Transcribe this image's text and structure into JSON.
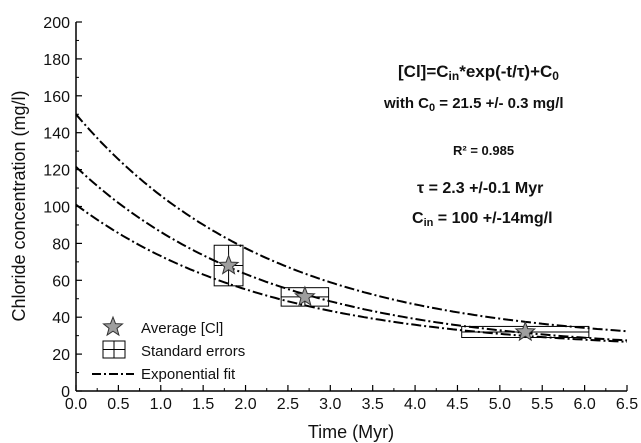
{
  "chart_data": {
    "type": "scatter",
    "xlabel": "Time (Myr)",
    "ylabel": "Chloride concentration (mg/l)",
    "xlim": [
      0,
      6.5
    ],
    "ylim": [
      0,
      200
    ],
    "x_ticks": [
      "0.0",
      "0.5",
      "1.0",
      "1.5",
      "2.0",
      "2.5",
      "3.0",
      "3.5",
      "4.0",
      "4.5",
      "5.0",
      "5.5",
      "6.0",
      "6.5"
    ],
    "y_ticks": [
      "0",
      "20",
      "40",
      "60",
      "80",
      "100",
      "120",
      "140",
      "160",
      "180",
      "200"
    ],
    "grid": false,
    "legend_position": "bottom-left",
    "points": [
      {
        "x": 1.8,
        "y": 68,
        "x_err": 0.17,
        "y_err": 11
      },
      {
        "x": 2.7,
        "y": 51,
        "x_err": 0.28,
        "y_err": 5
      },
      {
        "x": 5.3,
        "y": 32,
        "x_err": 0.75,
        "y_err": 3
      }
    ],
    "fit_curves": [
      {
        "cin": 125,
        "c0": 25,
        "tau": 2.3
      },
      {
        "cin": 100,
        "c0": 21.5,
        "tau": 2.3
      },
      {
        "cin": 79,
        "c0": 22,
        "tau": 2.3
      }
    ],
    "legend": [
      {
        "symbol": "star",
        "label": "Average [Cl]"
      },
      {
        "symbol": "errorbox",
        "label": "Standard errors"
      },
      {
        "symbol": "dashdot",
        "label": "Exponential fit"
      }
    ],
    "annotations": {
      "eq_lead": "[Cl]=C",
      "eq_sub1": "in",
      "eq_mid": "*exp(-t/τ)+C",
      "eq_sub2": "0",
      "with_lead": "with C",
      "with_sub": "0",
      "with_rest": " = 21.5 +/- 0.3 mg/l",
      "r2": "R² = 0.985",
      "tau": "τ = 2.3 +/-0.1 Myr",
      "cin_lead": "C",
      "cin_sub": "in",
      "cin_rest": " = 100 +/-14mg/l"
    },
    "colors": {
      "axis": "#000000",
      "curve": "#000000",
      "star_fill": "#9e9e9e",
      "star_stroke": "#333333"
    }
  }
}
